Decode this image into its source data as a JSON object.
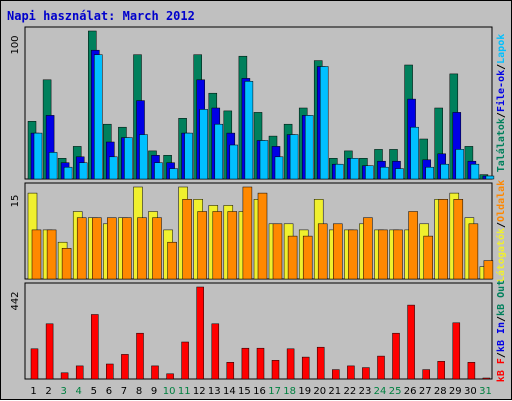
{
  "title": "Napi használat: March 2012",
  "colors": {
    "title": "#0000cc",
    "background": "#c0c0c0",
    "panel_border": "#000000",
    "hits": "#00805c",
    "files": "#0000e6",
    "pages": "#00c0ff",
    "visits": "#f0f02e",
    "sites": "#ff8800",
    "kbytes": "#ff0000",
    "weekend_label": "#008040",
    "weekday_label": "#000000"
  },
  "right_labels": {
    "top": [
      {
        "text": "Találatok",
        "color": "#00805c"
      },
      {
        "text": "/",
        "color": "#000000"
      },
      {
        "text": "File-ok",
        "color": "#0000e6"
      },
      {
        "text": "/",
        "color": "#000000"
      },
      {
        "text": "Lapok",
        "color": "#00c0ff"
      }
    ],
    "middle": [
      {
        "text": "Látogatók",
        "color": "#f0f02e"
      },
      {
        "text": "/",
        "color": "#000000"
      },
      {
        "text": "Oldalak",
        "color": "#ff8800"
      }
    ],
    "bottom": [
      {
        "text": "kB F",
        "color": "#ff0000"
      },
      {
        "text": "/",
        "color": "#000000"
      },
      {
        "text": "kB In",
        "color": "#0000e6"
      },
      {
        "text": "/",
        "color": "#000000"
      },
      {
        "text": "kB Out",
        "color": "#00805c"
      }
    ]
  },
  "chart_data": [
    {
      "type": "bar",
      "panel": "hits-files-pages",
      "y_max_label": "100",
      "ylim": [
        0,
        100
      ],
      "categories": [
        "1",
        "2",
        "3",
        "4",
        "5",
        "6",
        "7",
        "8",
        "9",
        "10",
        "11",
        "12",
        "13",
        "14",
        "15",
        "16",
        "17",
        "18",
        "19",
        "20",
        "21",
        "22",
        "23",
        "24",
        "25",
        "26",
        "27",
        "28",
        "29",
        "30",
        "31"
      ],
      "weekend": [
        3,
        4,
        10,
        11,
        17,
        18,
        24,
        25,
        31
      ],
      "series": [
        {
          "name": "Találatok",
          "values": [
            39,
            67,
            14,
            22,
            100,
            37,
            35,
            84,
            19,
            16,
            41,
            84,
            58,
            46,
            83,
            45,
            29,
            37,
            48,
            80,
            14,
            19,
            14,
            20,
            20,
            77,
            27,
            48,
            71,
            22,
            3
          ]
        },
        {
          "name": "File-ok",
          "values": [
            31,
            43,
            11,
            15,
            87,
            25,
            28,
            53,
            16,
            11,
            31,
            67,
            48,
            31,
            68,
            26,
            22,
            30,
            43,
            76,
            10,
            14,
            9,
            12,
            12,
            54,
            13,
            17,
            45,
            12,
            2
          ]
        },
        {
          "name": "Lapok",
          "values": [
            31,
            18,
            8,
            11,
            84,
            15,
            28,
            30,
            11,
            7,
            31,
            47,
            37,
            23,
            66,
            26,
            15,
            30,
            43,
            76,
            10,
            14,
            9,
            8,
            7,
            35,
            8,
            10,
            20,
            10,
            2
          ]
        }
      ]
    },
    {
      "type": "bar",
      "panel": "visits-sites",
      "y_max_label": "15",
      "ylim": [
        0,
        15
      ],
      "categories": [
        "1",
        "2",
        "3",
        "4",
        "5",
        "6",
        "7",
        "8",
        "9",
        "10",
        "11",
        "12",
        "13",
        "14",
        "15",
        "16",
        "17",
        "18",
        "19",
        "20",
        "21",
        "22",
        "23",
        "24",
        "25",
        "26",
        "27",
        "28",
        "29",
        "30",
        "31"
      ],
      "weekend": [
        3,
        4,
        10,
        11,
        17,
        18,
        24,
        25,
        31
      ],
      "series": [
        {
          "name": "Látogatók",
          "values": [
            14,
            8,
            6,
            11,
            10,
            9,
            10,
            15,
            11,
            8,
            15,
            13,
            12,
            12,
            11,
            13,
            9,
            9,
            8,
            13,
            8,
            8,
            9,
            8,
            8,
            8,
            9,
            13,
            14,
            10,
            2
          ]
        },
        {
          "name": "Oldalak",
          "values": [
            8,
            8,
            5,
            10,
            10,
            10,
            10,
            10,
            10,
            6,
            13,
            11,
            11,
            11,
            15,
            14,
            9,
            7,
            7,
            9,
            9,
            8,
            10,
            8,
            8,
            11,
            7,
            13,
            13,
            9,
            3
          ]
        }
      ]
    },
    {
      "type": "bar",
      "panel": "kbytes",
      "y_max_label": "442",
      "ylim": [
        0,
        442
      ],
      "categories": [
        "1",
        "2",
        "3",
        "4",
        "5",
        "6",
        "7",
        "8",
        "9",
        "10",
        "11",
        "12",
        "13",
        "14",
        "15",
        "16",
        "17",
        "18",
        "19",
        "20",
        "21",
        "22",
        "23",
        "24",
        "25",
        "26",
        "27",
        "28",
        "29",
        "30",
        "31"
      ],
      "weekend": [
        3,
        4,
        10,
        11,
        17,
        18,
        24,
        25,
        31
      ],
      "series": [
        {
          "name": "kB F",
          "values": [
            145,
            265,
            30,
            63,
            310,
            72,
            118,
            220,
            63,
            25,
            178,
            442,
            265,
            80,
            148,
            148,
            90,
            145,
            105,
            153,
            45,
            63,
            55,
            110,
            220,
            355,
            45,
            85,
            270,
            80,
            5
          ]
        }
      ]
    }
  ]
}
